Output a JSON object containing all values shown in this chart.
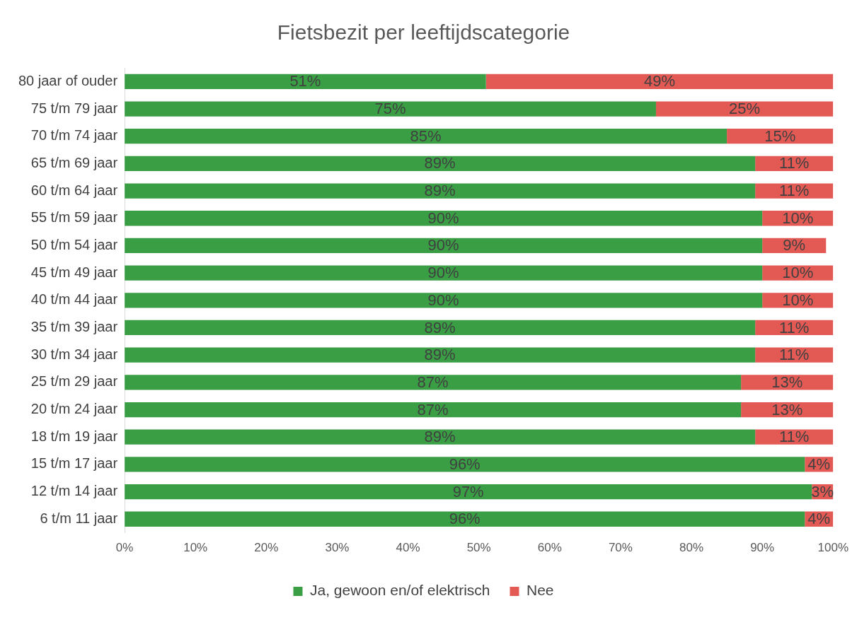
{
  "chart_data": {
    "type": "bar",
    "orientation": "horizontal",
    "stacked": true,
    "title": "Fietsbezit per leeftijdscategorie",
    "categories": [
      "80 jaar of ouder",
      "75 t/m 79 jaar",
      "70 t/m 74 jaar",
      "65 t/m 69 jaar",
      "60 t/m 64 jaar",
      "55 t/m 59 jaar",
      "50 t/m 54 jaar",
      "45 t/m 49 jaar",
      "40 t/m 44 jaar",
      "35 t/m 39 jaar",
      "30 t/m 34 jaar",
      "25 t/m 29 jaar",
      "20 t/m 24 jaar",
      "18 t/m 19 jaar",
      "15 t/m 17 jaar",
      "12 t/m 14 jaar",
      "6 t/m 11 jaar"
    ],
    "series": [
      {
        "name": "Ja, gewoon en/of elektrisch",
        "color": "#3a9e45",
        "values": [
          51,
          75,
          85,
          89,
          89,
          90,
          90,
          90,
          90,
          89,
          89,
          87,
          87,
          89,
          96,
          97,
          96
        ],
        "value_labels": [
          "51%",
          "75%",
          "85%",
          "89%",
          "89%",
          "90%",
          "90%",
          "90%",
          "90%",
          "89%",
          "89%",
          "87%",
          "87%",
          "89%",
          "96%",
          "97%",
          "96%"
        ]
      },
      {
        "name": "Nee",
        "color": "#e35a55",
        "values": [
          49,
          25,
          15,
          11,
          11,
          10,
          9,
          10,
          10,
          11,
          11,
          13,
          13,
          11,
          4,
          3,
          4
        ],
        "value_labels": [
          "49%",
          "25%",
          "15%",
          "11%",
          "11%",
          "10%",
          "9%",
          "10%",
          "10%",
          "11%",
          "11%",
          "13%",
          "13%",
          "11%",
          "4%",
          "3%",
          "4%"
        ]
      }
    ],
    "xlim": [
      0,
      100
    ],
    "xticks": [
      {
        "value": 0,
        "label": "0%"
      },
      {
        "value": 10,
        "label": "10%"
      },
      {
        "value": 20,
        "label": "20%"
      },
      {
        "value": 30,
        "label": "30%"
      },
      {
        "value": 40,
        "label": "40%"
      },
      {
        "value": 50,
        "label": "50%"
      },
      {
        "value": 60,
        "label": "60%"
      },
      {
        "value": 70,
        "label": "70%"
      },
      {
        "value": 80,
        "label": "80%"
      },
      {
        "value": 90,
        "label": "90%"
      },
      {
        "value": 100,
        "label": "100%"
      }
    ],
    "grid": false,
    "legend": "bottom"
  }
}
